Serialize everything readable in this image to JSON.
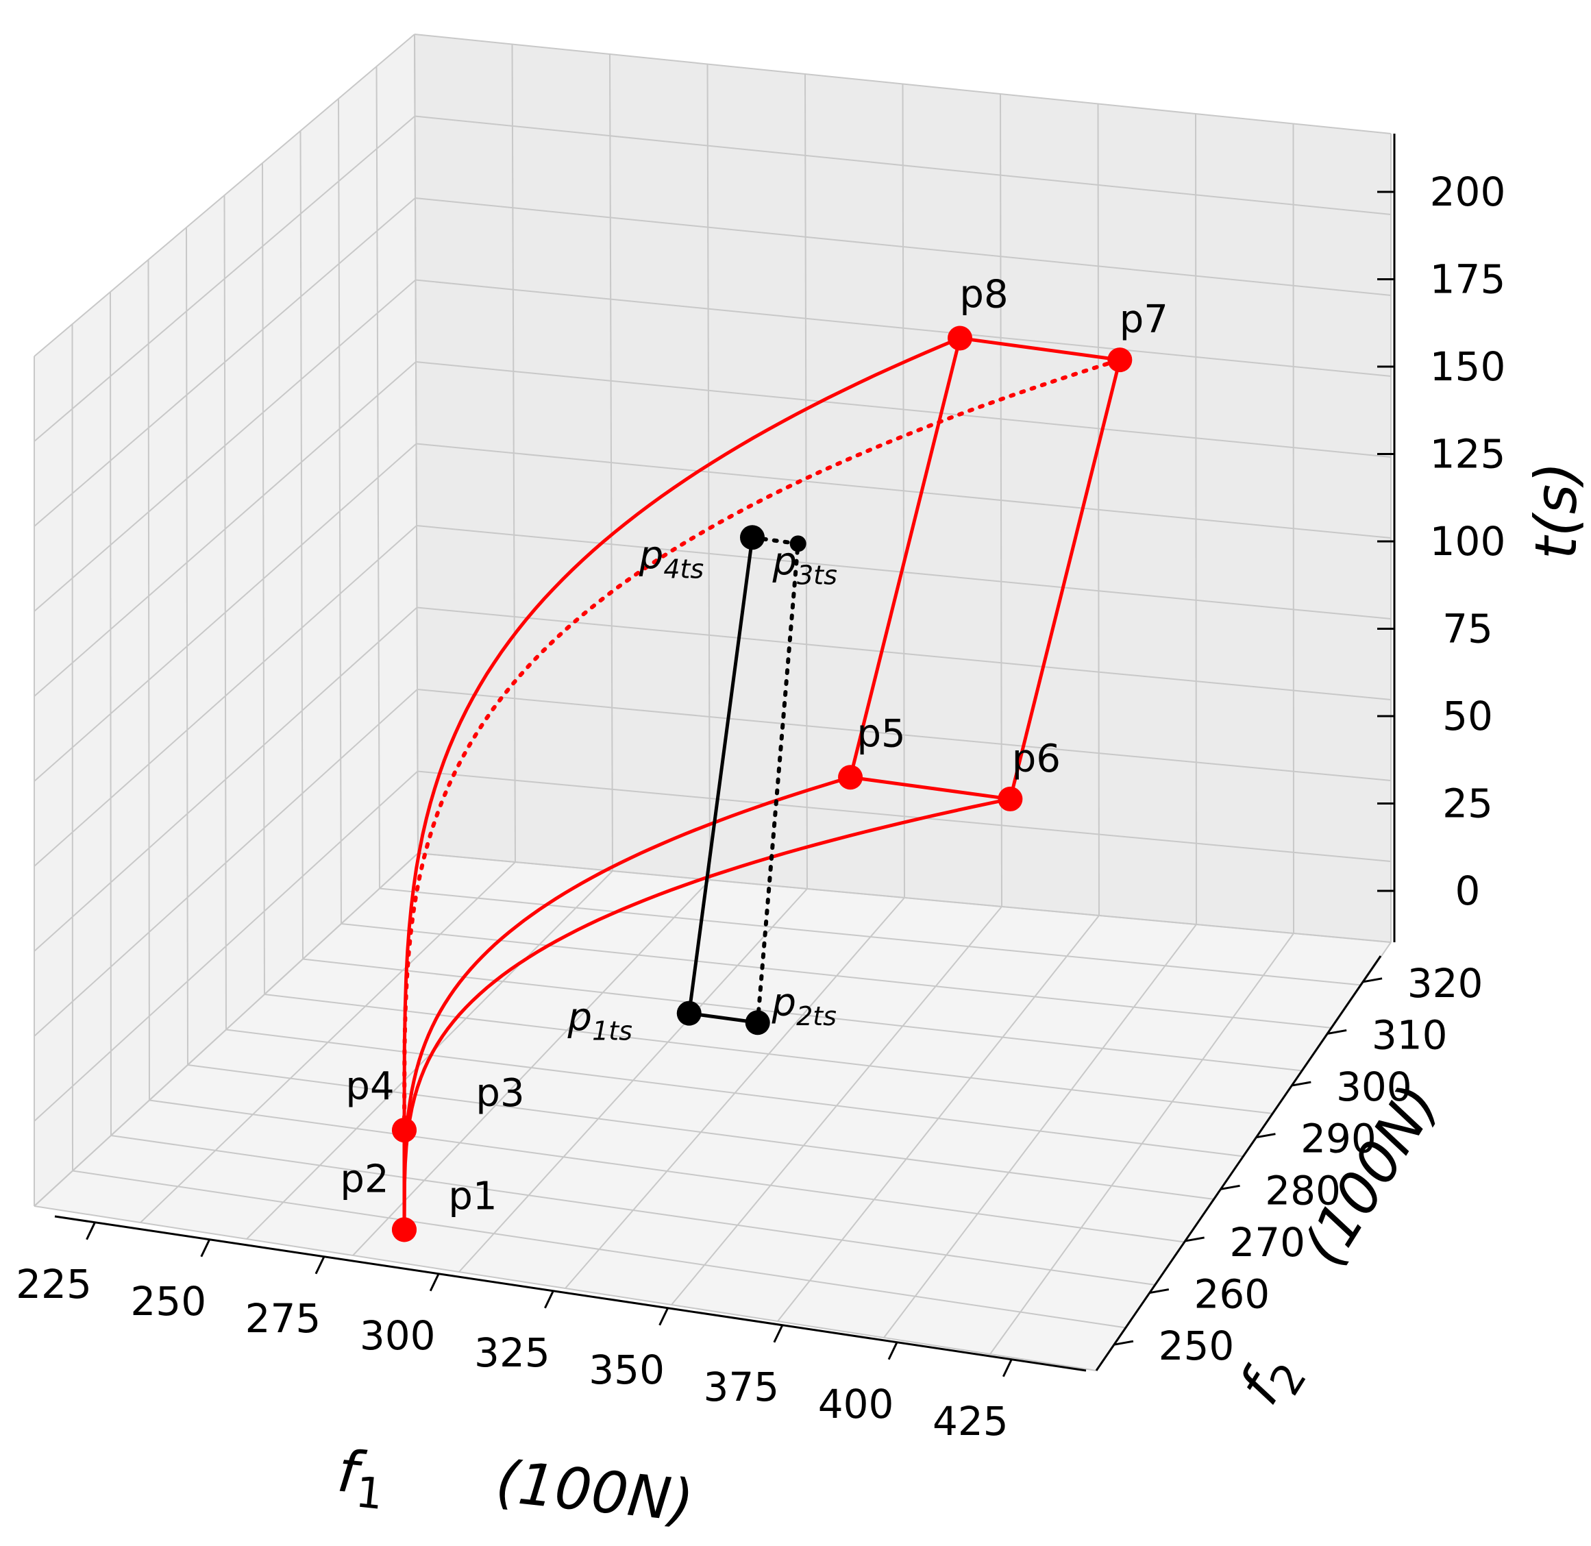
{
  "chart_data": {
    "type": "line3d",
    "title": "",
    "axes": {
      "x": {
        "label_main": "f",
        "label_sub": "1",
        "label_unit": "(100N)",
        "ticks": [
          225,
          250,
          275,
          300,
          325,
          350,
          375,
          400,
          425
        ]
      },
      "y": {
        "label_main": "f",
        "label_sub": "2",
        "label_unit": "(100N)",
        "ticks": [
          250,
          260,
          270,
          280,
          290,
          300,
          310,
          320
        ]
      },
      "z": {
        "label": "t(s)",
        "ticks": [
          0,
          25,
          50,
          75,
          100,
          125,
          150,
          175,
          200
        ]
      }
    },
    "points": [
      {
        "name": "p1",
        "label": "p1",
        "f1": 300,
        "f2": 250,
        "t": 0,
        "color": "#ff0000"
      },
      {
        "name": "p2",
        "label": "p2",
        "f1": 300,
        "f2": 250,
        "t": 0,
        "color": "#ff0000"
      },
      {
        "name": "p3",
        "label": "p3",
        "f1": 300,
        "f2": 250,
        "t": 30,
        "color": "#ff0000"
      },
      {
        "name": "p4",
        "label": "p4",
        "f1": 300,
        "f2": 250,
        "t": 30,
        "color": "#ff0000"
      },
      {
        "name": "p5",
        "label": "p5",
        "f1": 375,
        "f2": 272,
        "t": 120,
        "color": "#ff0000"
      },
      {
        "name": "p6",
        "label": "p6",
        "f1": 410,
        "f2": 272,
        "t": 120,
        "color": "#ff0000"
      },
      {
        "name": "p7",
        "label": "p7",
        "f1": 400,
        "f2": 305,
        "t": 205,
        "color": "#ff0000"
      },
      {
        "name": "p8",
        "label": "p8",
        "f1": 365,
        "f2": 305,
        "t": 205,
        "color": "#ff0000"
      },
      {
        "name": "p1ts",
        "label_main": "p",
        "label_sub": "1ts",
        "f1": 350,
        "f2": 262,
        "t": 58,
        "color": "#000000"
      },
      {
        "name": "p2ts",
        "label_main": "p",
        "label_sub": "2ts",
        "f1": 365,
        "f2": 262,
        "t": 58,
        "color": "#000000"
      },
      {
        "name": "p3ts",
        "label_main": "p",
        "label_sub": "3ts",
        "f1": 345,
        "f2": 290,
        "t": 160,
        "color": "#000000"
      },
      {
        "name": "p4ts",
        "label_main": "p",
        "label_sub": "4ts",
        "f1": 335,
        "f2": 290,
        "t": 160,
        "color": "#000000"
      }
    ],
    "segments": [
      {
        "from": "p1",
        "to": "p4",
        "style": "solid",
        "color": "#ff0000"
      },
      {
        "from": "p5",
        "to": "p6",
        "style": "solid",
        "color": "#ff0000"
      },
      {
        "from": "p6",
        "to": "p7",
        "style": "solid",
        "color": "#ff0000"
      },
      {
        "from": "p7",
        "to": "p8",
        "style": "solid",
        "color": "#ff0000"
      },
      {
        "from": "p8",
        "to": "p5",
        "style": "solid",
        "color": "#ff0000"
      },
      {
        "from": "p1ts",
        "to": "p4ts",
        "style": "solid",
        "color": "#000000"
      },
      {
        "from": "p1ts",
        "to": "p2ts",
        "style": "solid",
        "color": "#000000"
      },
      {
        "from": "p4ts",
        "to": "p3ts",
        "style": "dotted",
        "color": "#000000"
      },
      {
        "from": "p2ts",
        "to": "p3ts",
        "style": "dotted",
        "color": "#000000"
      }
    ],
    "curves": [
      {
        "name": "curve-p1-p5",
        "from": "p1",
        "to": "p5",
        "style": "solid",
        "color": "#ff0000"
      },
      {
        "name": "curve-p2-p6",
        "from": "p2",
        "to": "p6",
        "style": "solid",
        "color": "#ff0000"
      },
      {
        "name": "curve-p4-p8",
        "from": "p4",
        "to": "p8",
        "style": "solid",
        "color": "#ff0000"
      },
      {
        "name": "curve-p3-p7",
        "from": "p3",
        "to": "p7",
        "style": "dotted",
        "color": "#ff0000"
      }
    ],
    "grid": true
  }
}
